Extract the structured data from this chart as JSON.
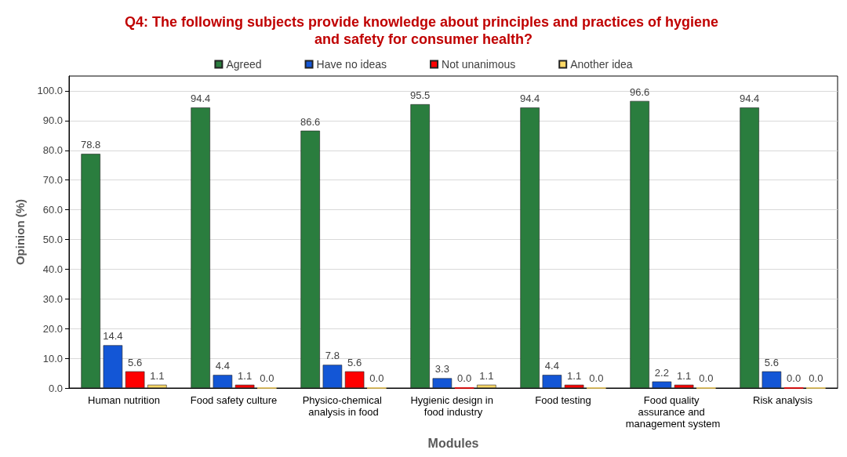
{
  "chart_data": {
    "type": "bar",
    "title": "Q4: The following subjects provide knowledge about principles and practices of hygiene and safety for consumer health?",
    "xlabel": "Modules",
    "ylabel": "Opinion (%)",
    "categories": [
      "Human nutrition",
      "Food safety culture",
      "Physico-chemical analysis in food",
      "Hygienic design in food industry",
      "Food testing",
      "Food quality assurance and management system",
      "Risk analysis"
    ],
    "series": [
      {
        "name": "Agreed",
        "color": "#2a7d3e",
        "values": [
          78.8,
          94.4,
          86.6,
          95.5,
          94.4,
          96.6,
          94.4
        ],
        "value_labels": [
          "78.8",
          "94.4",
          "86.6",
          "95.5",
          "94.4",
          "96.6",
          "94.4"
        ]
      },
      {
        "name": "Have no ideas",
        "color": "#1356d6",
        "values": [
          14.4,
          4.4,
          7.8,
          3.3,
          4.4,
          2.2,
          5.6
        ],
        "value_labels": [
          "14.4",
          "4.4",
          "7.8",
          "3.3",
          "4.4",
          "2.2",
          "5.6"
        ]
      },
      {
        "name": "Not unanimous",
        "color": "#ff0000",
        "values": [
          5.6,
          1.1,
          5.6,
          0,
          1.1,
          1.1,
          0
        ],
        "value_labels": [
          "5.6",
          "1.1",
          "5.6",
          "0.0",
          "1.1",
          "1.1",
          "0.0"
        ]
      },
      {
        "name": "Another idea",
        "color": "#ffd966",
        "values": [
          1.1,
          0,
          0,
          1.1,
          0,
          0,
          0
        ],
        "value_labels": [
          "1.1",
          "0.0",
          "0.0",
          "1.1",
          "0.0",
          "0.0",
          "0.0"
        ]
      }
    ],
    "ylim": [
      0,
      105
    ],
    "yticks": [
      {
        "value": 0,
        "label": "0.0"
      },
      {
        "value": 10,
        "label": "10.0"
      },
      {
        "value": 20,
        "label": "20.0"
      },
      {
        "value": 30,
        "label": "30.0"
      },
      {
        "value": 40,
        "label": "40.0"
      },
      {
        "value": 50,
        "label": "50.0"
      },
      {
        "value": 60,
        "label": "60.0"
      },
      {
        "value": 70,
        "label": "70.0"
      },
      {
        "value": 80,
        "label": "80.0"
      },
      {
        "value": 90,
        "label": "90.0"
      },
      {
        "value": 100,
        "label": "100.0"
      }
    ],
    "grid": "y",
    "legend": "top"
  }
}
